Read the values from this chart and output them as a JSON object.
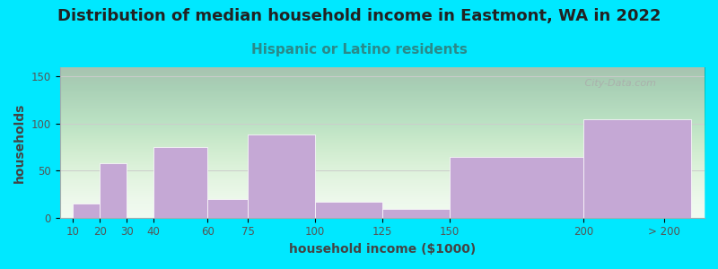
{
  "title": "Distribution of median household income in Eastmont, WA in 2022",
  "subtitle": "Hispanic or Latino residents",
  "xlabel": "household income ($1000)",
  "ylabel": "households",
  "tick_labels": [
    "10",
    "20",
    "30",
    "40",
    "60",
    "75",
    "100",
    "125",
    "150",
    "200",
    "> 200"
  ],
  "bar_lefts": [
    10,
    20,
    30,
    40,
    60,
    75,
    100,
    125,
    150,
    200
  ],
  "bar_rights": [
    20,
    30,
    40,
    60,
    75,
    100,
    125,
    150,
    200,
    240
  ],
  "bar_values": [
    15,
    58,
    0,
    75,
    20,
    88,
    17,
    9,
    65,
    105
  ],
  "bar_color": "#c5a8d5",
  "ylim": [
    0,
    160
  ],
  "yticks": [
    0,
    50,
    100,
    150
  ],
  "background_color": "#00e8ff",
  "title_fontsize": 13,
  "subtitle_fontsize": 11,
  "subtitle_color": "#2a8a8a",
  "axis_label_fontsize": 10,
  "tick_label_fontsize": 8.5,
  "watermark": "   City-Data.com"
}
